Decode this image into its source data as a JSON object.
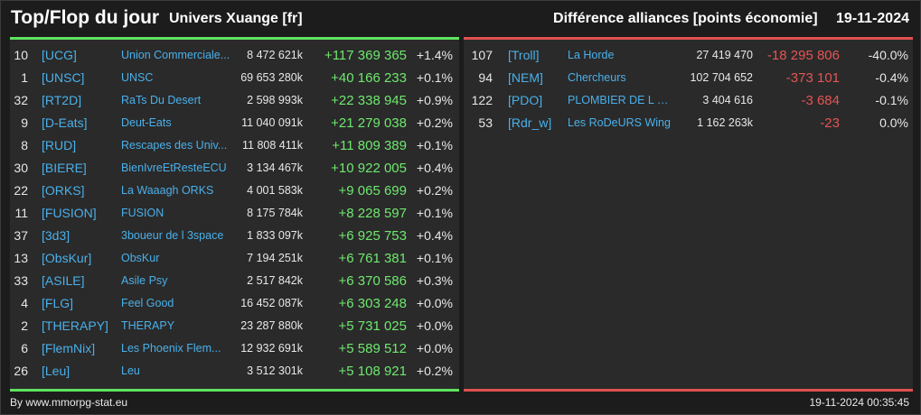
{
  "header": {
    "title": "Top/Flop du jour",
    "universe": "Univers Xuange [fr]",
    "metric": "Différence alliances [points économie]",
    "date": "19-11-2024"
  },
  "top": [
    {
      "rank": "10",
      "tag": "[UCG]",
      "name": "Union Commerciale...",
      "points": "8 472 621k",
      "diff": "+117 369 365",
      "pct": "+1.4%"
    },
    {
      "rank": "1",
      "tag": "[UNSC]",
      "name": "UNSC",
      "points": "69 653 280k",
      "diff": "+40 166 233",
      "pct": "+0.1%"
    },
    {
      "rank": "32",
      "tag": "[RT2D]",
      "name": "RaTs Du Desert",
      "points": "2 598 993k",
      "diff": "+22 338 945",
      "pct": "+0.9%"
    },
    {
      "rank": "9",
      "tag": "[D-Eats]",
      "name": "Deut-Eats",
      "points": "11 040 091k",
      "diff": "+21 279 038",
      "pct": "+0.2%"
    },
    {
      "rank": "8",
      "tag": "[RUD]",
      "name": "Rescapes des Univ...",
      "points": "11 808 411k",
      "diff": "+11 809 389",
      "pct": "+0.1%"
    },
    {
      "rank": "30",
      "tag": "[BIERE]",
      "name": "BienIvreEtResteECU",
      "points": "3 134 467k",
      "diff": "+10 922 005",
      "pct": "+0.4%"
    },
    {
      "rank": "22",
      "tag": "[ORKS]",
      "name": "La Waaagh ORKS",
      "points": "4 001 583k",
      "diff": "+9 065 699",
      "pct": "+0.2%"
    },
    {
      "rank": "11",
      "tag": "[FUSION]",
      "name": "FUSION",
      "points": "8 175 784k",
      "diff": "+8 228 597",
      "pct": "+0.1%"
    },
    {
      "rank": "37",
      "tag": "[3d3]",
      "name": "3boueur de l 3space",
      "points": "1 833 097k",
      "diff": "+6 925 753",
      "pct": "+0.4%"
    },
    {
      "rank": "13",
      "tag": "[ObsKur]",
      "name": "ObsKur",
      "points": "7 194 251k",
      "diff": "+6 761 381",
      "pct": "+0.1%"
    },
    {
      "rank": "33",
      "tag": "[ASILE]",
      "name": "Asile Psy",
      "points": "2 517 842k",
      "diff": "+6 370 586",
      "pct": "+0.3%"
    },
    {
      "rank": "4",
      "tag": "[FLG]",
      "name": "Feel Good",
      "points": "16 452 087k",
      "diff": "+6 303 248",
      "pct": "+0.0%"
    },
    {
      "rank": "2",
      "tag": "[THERAPY]",
      "name": "THERAPY",
      "points": "23 287 880k",
      "diff": "+5 731 025",
      "pct": "+0.0%"
    },
    {
      "rank": "6",
      "tag": "[FlemNix]",
      "name": "Les Phoenix Flem...",
      "points": "12 932 691k",
      "diff": "+5 589 512",
      "pct": "+0.0%"
    },
    {
      "rank": "26",
      "tag": "[Leu]",
      "name": "Leu",
      "points": "3 512 301k",
      "diff": "+5 108 921",
      "pct": "+0.2%"
    }
  ],
  "flop": [
    {
      "rank": "107",
      "tag": "[Troll]",
      "name": "La Horde",
      "points": "27 419 470",
      "diff": "-18 295 806",
      "pct": "-40.0%"
    },
    {
      "rank": "94",
      "tag": "[NEM]",
      "name": "Chercheurs",
      "points": "102 704 652",
      "diff": "-373 101",
      "pct": "-0.4%"
    },
    {
      "rank": "122",
      "tag": "[PDO]",
      "name": "PLOMBIER DE L O...",
      "points": "3 404 616",
      "diff": "-3 684",
      "pct": "-0.1%"
    },
    {
      "rank": "53",
      "tag": "[Rdr_w]",
      "name": "Les RoDeURS Wing",
      "points": "1 162 263k",
      "diff": "-23",
      "pct": "0.0%"
    }
  ],
  "footer": {
    "credit": "By www.mmorpg-stat.eu",
    "timestamp": "19-11-2024 00:35:45"
  },
  "colors": {
    "positive": "#6ee86e",
    "negative": "#e55454",
    "link": "#4ab0ea",
    "panel": "#2a2a2a"
  }
}
